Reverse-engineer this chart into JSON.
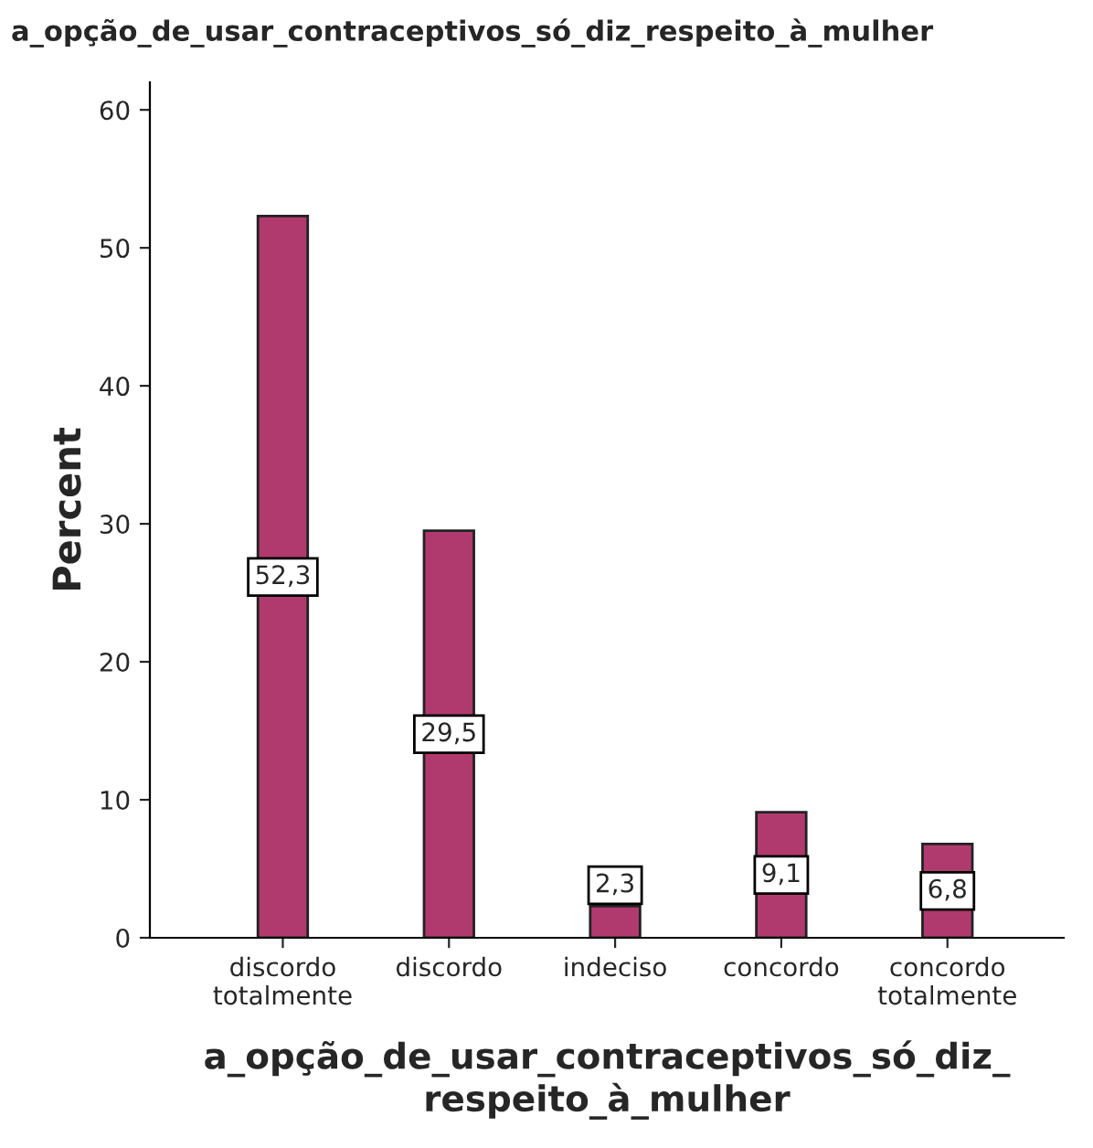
{
  "chart_data": {
    "type": "bar",
    "title": "a_opção_de_usar_contraceptivos_só_diz_respeito_à_mulher",
    "xlabel": "a_opção_de_usar_contraceptivos_só_diz_\nrespeito_à_mulher",
    "ylabel": "Percent",
    "categories": [
      "discordo\ntotalmente",
      "discordo",
      "indeciso",
      "concordo",
      "concordo\ntotalmente"
    ],
    "values": [
      52.3,
      29.5,
      2.3,
      9.1,
      6.8
    ],
    "value_labels": [
      "52,3",
      "29,5",
      "2,3",
      "9,1",
      "6,8"
    ],
    "color": "#b03a6e",
    "ylim": [
      0,
      62
    ],
    "yticks": [
      0,
      10,
      20,
      30,
      40,
      50,
      60
    ],
    "grid": false,
    "legend": false
  }
}
